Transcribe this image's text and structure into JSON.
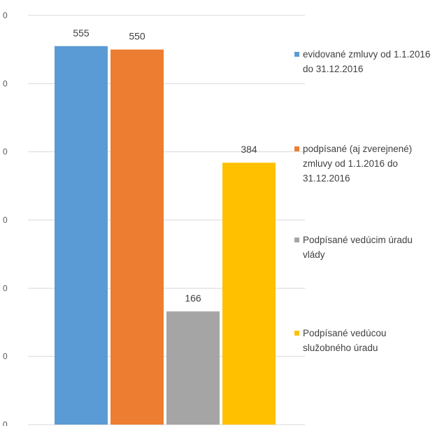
{
  "chart_data": {
    "type": "bar",
    "title": "",
    "xlabel": "",
    "ylabel": "",
    "ylim": [
      0,
      600
    ],
    "y_tick_labels": [
      "0",
      "0",
      "0",
      "0",
      "0",
      "0",
      "0"
    ],
    "grid": true,
    "legend_position": "right",
    "series": [
      {
        "name": "evidované zmluvy od 1.1.2016 do 31.12.2016",
        "values": [
          555
        ],
        "color": "#5b9bd5"
      },
      {
        "name": "podpísané (aj zverejnené) zmluvy od 1.1.2016 do 31.12.2016",
        "values": [
          550
        ],
        "color": "#ed7d31"
      },
      {
        "name": "Podpísané vedúcim úradu vlády",
        "values": [
          166
        ],
        "color": "#a5a5a5"
      },
      {
        "name": "Podpísané vedúcou služobného úradu",
        "values": [
          384
        ],
        "color": "#ffc000"
      }
    ],
    "data_labels": [
      "555",
      "550",
      "166",
      "384"
    ]
  }
}
